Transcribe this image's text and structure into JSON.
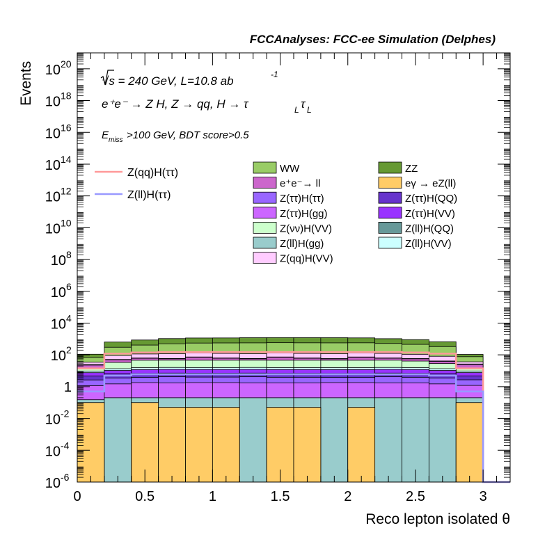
{
  "chart_data": {
    "type": "bar",
    "title": "FCCAnalyses: FCC-ee Simulation (Delphes)",
    "annotations": {
      "sqrt_s": "√s = 240 GeV, L=10.8 ab",
      "sqrt_s_exp": "-1",
      "process": "e⁺e⁻ → Z H, Z → qq, H → τ",
      "process_sub1": "L",
      "process_tau2": "τ",
      "process_sub2": "L",
      "cut_main": "E",
      "cut_sub": "miss",
      "cut_rest": ">100 GeV, BDT score>0.5"
    },
    "xlabel": "Reco lepton isolated θ",
    "ylabel": "Events",
    "xlim": [
      0,
      3.2
    ],
    "ylim": [
      1e-06,
      1e+21
    ],
    "log_y": true,
    "grid": false,
    "legend_position": "top",
    "x_ticks": [
      "0",
      "0.5",
      "1",
      "1.5",
      "2",
      "2.5",
      "3"
    ],
    "y_ticks": [
      {
        "base": "10",
        "exp": "-6"
      },
      {
        "base": "10",
        "exp": "-4"
      },
      {
        "base": "10",
        "exp": "-2"
      },
      {
        "base": "1",
        "exp": ""
      },
      {
        "base": "10",
        "exp": "2"
      },
      {
        "base": "10",
        "exp": "4"
      },
      {
        "base": "10",
        "exp": "6"
      },
      {
        "base": "10",
        "exp": "8"
      },
      {
        "base": "10",
        "exp": "10"
      },
      {
        "base": "10",
        "exp": "12"
      },
      {
        "base": "10",
        "exp": "14"
      },
      {
        "base": "10",
        "exp": "16"
      },
      {
        "base": "10",
        "exp": "18"
      },
      {
        "base": "10",
        "exp": "20"
      }
    ],
    "bin_edges": [
      0,
      0.2,
      0.4,
      0.6,
      0.8,
      1.0,
      1.2,
      1.4,
      1.6,
      1.8,
      2.0,
      2.2,
      2.4,
      2.6,
      2.8,
      3.0,
      3.2
    ],
    "stack": [
      {
        "name": "eγ → eZ(ll)",
        "color": "#FFCC66",
        "values": [
          0.1,
          1e-06,
          0.1,
          0.05,
          0.05,
          0.05,
          1e-06,
          0.05,
          0.05,
          1e-06,
          0.05,
          1e-06,
          1e-06,
          1e-06,
          0.1,
          1e-06
        ]
      },
      {
        "name": "Z(ll)H(gg)",
        "color": "#99CCCC",
        "values": [
          0.05,
          0.2,
          0.1,
          0.15,
          0.15,
          0.15,
          0.2,
          0.15,
          0.15,
          0.2,
          0.15,
          0.2,
          0.2,
          0.2,
          0.1,
          0
        ]
      },
      {
        "name": "Z(ττ)H(gg)",
        "color": "#CC66FF",
        "values": [
          1.0,
          1.3,
          1.6,
          1.5,
          1.6,
          1.6,
          1.5,
          1.5,
          1.5,
          1.6,
          1.6,
          1.5,
          1.5,
          1.3,
          1.0,
          0
        ]
      },
      {
        "name": "Z(ττ)H(ττ)",
        "color": "#9966FF",
        "values": [
          1.5,
          2.0,
          2.0,
          2.5,
          2.2,
          2.2,
          2.5,
          2.2,
          2.2,
          2.0,
          2.0,
          2.5,
          2.2,
          2.0,
          1.5,
          0
        ]
      },
      {
        "name": "Z(ττ)H(QQ)",
        "color": "#6633CC",
        "values": [
          2,
          3,
          3,
          3,
          3,
          3,
          3,
          3,
          3,
          3,
          3,
          3,
          3,
          3,
          2,
          0
        ]
      },
      {
        "name": "Z(ττ)H(VV)",
        "color": "#9933FF",
        "values": [
          3,
          4,
          5,
          5,
          5,
          5,
          5,
          5,
          5,
          5,
          5,
          5,
          5,
          4,
          3,
          0
        ]
      },
      {
        "name": "Z(ll)H(VV)",
        "color": "#CCFFFF",
        "values": [
          2,
          3,
          4,
          4,
          4,
          4,
          4,
          4,
          4,
          4,
          4,
          4,
          4,
          3,
          2,
          0
        ]
      },
      {
        "name": "Z(νν)H(VV)",
        "color": "#CCFFCC",
        "values": [
          5,
          20,
          30,
          30,
          30,
          30,
          30,
          30,
          30,
          30,
          30,
          30,
          25,
          15,
          5,
          0
        ]
      },
      {
        "name": "e⁺e⁻→ ll",
        "color": "#CC66CC",
        "values": [
          8,
          15,
          15,
          10,
          25,
          15,
          10,
          25,
          15,
          10,
          25,
          15,
          15,
          10,
          10,
          0
        ]
      },
      {
        "name": "Z(ll)H(QQ)",
        "color": "#669999",
        "values": [
          2,
          3,
          3,
          3,
          3,
          3,
          3,
          3,
          3,
          3,
          3,
          3,
          3,
          3,
          2,
          0
        ]
      },
      {
        "name": "Z(qq)H(VV)",
        "color": "#FFCCFF",
        "values": [
          10,
          40,
          50,
          60,
          60,
          60,
          60,
          60,
          60,
          60,
          60,
          60,
          50,
          40,
          10,
          0
        ]
      },
      {
        "name": "WW",
        "color": "#99CC66",
        "values": [
          35,
          210,
          300,
          380,
          420,
          440,
          450,
          450,
          450,
          450,
          440,
          400,
          350,
          250,
          40,
          0
        ]
      },
      {
        "name": "ZZ",
        "color": "#669933",
        "values": [
          40,
          340,
          450,
          560,
          600,
          600,
          640,
          640,
          640,
          640,
          600,
          520,
          450,
          340,
          30,
          0
        ]
      }
    ],
    "lines": [
      {
        "name": "Z(qq)H(ττ)",
        "color": "#FF9999",
        "values": [
          14,
          120,
          140,
          150,
          150,
          150,
          150,
          150,
          150,
          150,
          150,
          150,
          140,
          120,
          14,
          1e-06
        ]
      },
      {
        "name": "Z(ll)H(ττ)",
        "color": "#9999FF",
        "values": [
          0.5,
          5,
          6,
          6,
          6,
          6,
          6,
          6,
          6,
          6,
          6,
          6,
          6,
          5,
          0.5,
          1e-06
        ]
      }
    ],
    "legend": {
      "lines": [
        {
          "label": "Z(qq)H(ττ)",
          "color": "#FF9999"
        },
        {
          "label": "Z(ll)H(ττ)",
          "color": "#9999FF"
        }
      ],
      "col1": [
        {
          "label": "WW",
          "color": "#99CC66"
        },
        {
          "label": "e⁺e⁻→ ll",
          "color": "#CC66CC"
        },
        {
          "label": "Z(ττ)H(ττ)",
          "color": "#9966FF"
        },
        {
          "label": "Z(ττ)H(gg)",
          "color": "#CC66FF"
        },
        {
          "label": "Z(νν)H(VV)",
          "color": "#CCFFCC"
        },
        {
          "label": "Z(ll)H(gg)",
          "color": "#99CCCC"
        },
        {
          "label": "Z(qq)H(VV)",
          "color": "#FFCCFF"
        }
      ],
      "col2": [
        {
          "label": "ZZ",
          "color": "#669933"
        },
        {
          "label": "eγ → eZ(ll)",
          "color": "#FFCC66"
        },
        {
          "label": "Z(ττ)H(QQ)",
          "color": "#6633CC"
        },
        {
          "label": "Z(ττ)H(VV)",
          "color": "#9933FF"
        },
        {
          "label": "Z(ll)H(QQ)",
          "color": "#669999"
        },
        {
          "label": "Z(ll)H(VV)",
          "color": "#CCFFFF"
        }
      ]
    }
  }
}
